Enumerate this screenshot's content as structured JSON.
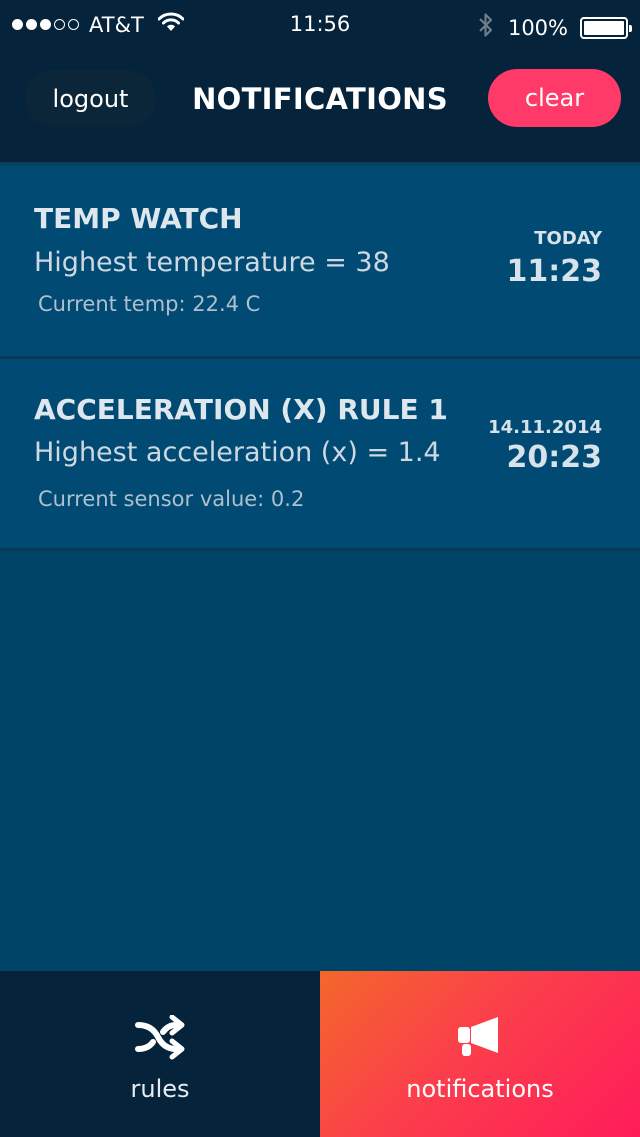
{
  "status_bar": {
    "carrier": "AT&T",
    "time": "11:56",
    "battery": "100%",
    "signal_bars_filled": 3,
    "signal_bars_total": 5
  },
  "header": {
    "logout_label": "logout",
    "title": "NOTIFICATIONS",
    "clear_label": "clear"
  },
  "notifications": [
    {
      "title": "TEMP WATCH",
      "description": "Highest temperature = 38",
      "current": "Current temp: 22.4 C",
      "date": "TODAY",
      "time": "11:23"
    },
    {
      "title": "ACCELERATION (X) RULE 1",
      "description": "Highest acceleration (x) = 1.4",
      "current": "Current sensor value: 0.2",
      "date": "14.11.2014",
      "time": "20:23"
    }
  ],
  "tabs": {
    "rules_label": "rules",
    "notifications_label": "notifications",
    "active": "notifications"
  },
  "colors": {
    "header_bg": "#05233a",
    "content_bg": "#004468",
    "card_bg": "#004a73",
    "accent": "#ff3a68"
  },
  "icons": {
    "wifi": "wifi-icon",
    "bluetooth": "bluetooth-icon",
    "battery": "battery-icon",
    "rules": "shuffle-icon",
    "notifications": "megaphone-icon"
  }
}
